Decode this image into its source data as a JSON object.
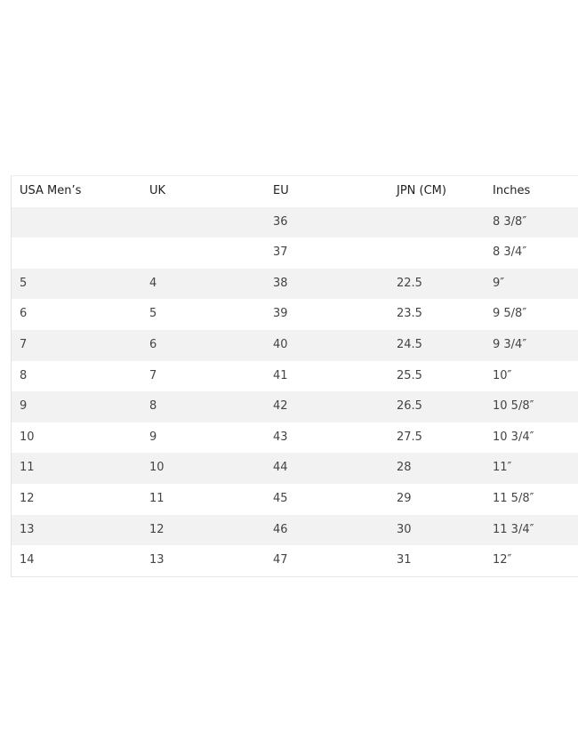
{
  "table": {
    "header": [
      "USA Men’s",
      "UK",
      "EU",
      "JPN (CM)",
      "Inches"
    ],
    "rows": [
      [
        null,
        null,
        "36",
        null,
        "8 3/8″"
      ],
      [
        null,
        null,
        "37",
        null,
        "8 3/4″"
      ],
      [
        "5",
        "4",
        "38",
        "22.5",
        "9″"
      ],
      [
        "6",
        "5",
        "39",
        "23.5",
        "9 5/8″"
      ],
      [
        "7",
        "6",
        "40",
        "24.5",
        "9 3/4″"
      ],
      [
        "8",
        "7",
        "41",
        "25.5",
        "10″"
      ],
      [
        "9",
        "8",
        "42",
        "26.5",
        "10 5/8″"
      ],
      [
        "10",
        "9",
        "43",
        "27.5",
        "10 3/4″"
      ],
      [
        "11",
        "10",
        "44",
        "28",
        "11″"
      ],
      [
        "12",
        "11",
        "45",
        "29",
        "11 5/8″"
      ],
      [
        "13",
        "12",
        "46",
        "30",
        "11 3/4″"
      ],
      [
        "14",
        "13",
        "47",
        "31",
        "12″"
      ]
    ]
  }
}
